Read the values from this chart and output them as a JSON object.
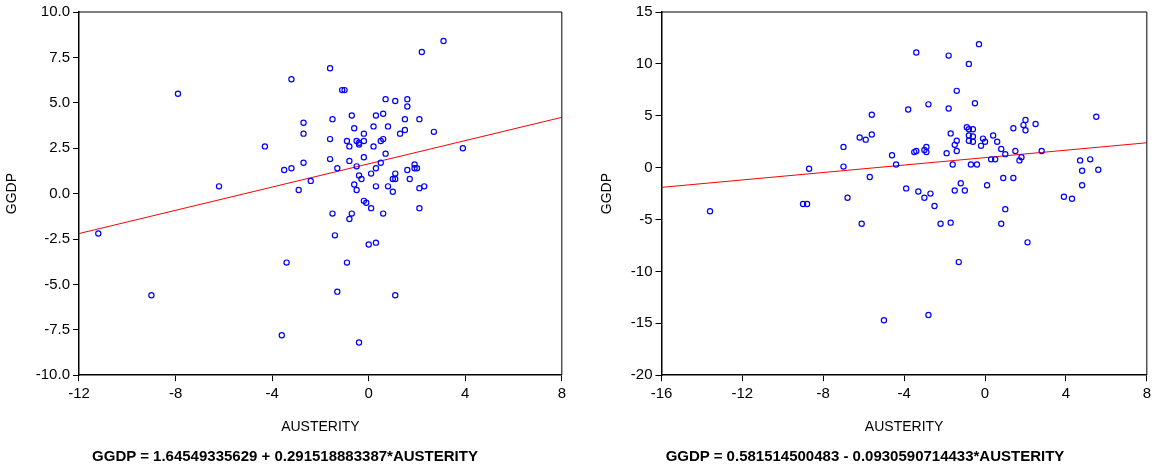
{
  "chart_data": [
    {
      "type": "scatter",
      "xlabel": "AUSTERITY",
      "ylabel": "GGDP",
      "xlim": [
        -12,
        8
      ],
      "xticks": [
        -12,
        -8,
        -4,
        0,
        4,
        8
      ],
      "ylim": [
        -10,
        10
      ],
      "yticks": [
        {
          "value": -10,
          "label": "-10.0"
        },
        {
          "value": -7.5,
          "label": "-7.5"
        },
        {
          "value": -5,
          "label": "-5.0"
        },
        {
          "value": -2.5,
          "label": "-2.5"
        },
        {
          "value": 0,
          "label": "0.0"
        },
        {
          "value": 2.5,
          "label": "2.5"
        },
        {
          "value": 5,
          "label": "5.0"
        },
        {
          "value": 7.5,
          "label": "7.5"
        },
        {
          "value": 10,
          "label": "10.0"
        }
      ],
      "grid": false,
      "legend": false,
      "marker": "circle",
      "annotations": [
        "GGDP = 1.64549335629 + 0.291518883387*AUSTERITY"
      ],
      "series": [
        {
          "color": "#0000ff",
          "x": [
            3.1,
            2.2,
            -1.6,
            -3.2,
            -7.9,
            -1.1,
            -1.0,
            0.7,
            1.1,
            1.6,
            1.6,
            -2.7,
            -1.5,
            -0.7,
            0.3,
            0.6,
            1.5,
            2.1,
            -2.7,
            -0.6,
            -0.2,
            0.2,
            0.8,
            1.5,
            1.3,
            2.7,
            -4.3,
            -1.6,
            -0.9,
            -0.5,
            -0.4,
            -0.2,
            -0.4,
            -0.8,
            0.2,
            0.5,
            0.6,
            3.9,
            0.7,
            -1.6,
            -0.8,
            -0.2,
            -2.7,
            -1.3,
            -0.5,
            0.5,
            0.3,
            1.9,
            2.0,
            1.9,
            1.6,
            -3.5,
            -3.2,
            0.1,
            -0.4,
            1.1,
            -0.3,
            1.0,
            1.1,
            1.7,
            -2.4,
            -0.6,
            -6.2,
            0.8,
            0.3,
            2.1,
            2.3,
            -2.9,
            -0.5,
            1.0,
            -0.2,
            -0.1,
            -1.5,
            -0.7,
            -0.8,
            0.1,
            0.6,
            2.1,
            -11.2,
            -1.4,
            0.0,
            0.3,
            -3.4,
            -0.9,
            -9.0,
            -1.3,
            1.1,
            -3.6,
            -0.4
          ],
          "values": [
            8.4,
            7.8,
            6.9,
            6.3,
            5.5,
            5.7,
            5.7,
            5.2,
            5.1,
            5.2,
            4.8,
            3.9,
            4.1,
            4.3,
            4.3,
            4.4,
            4.1,
            4.1,
            3.3,
            3.6,
            3.3,
            3.7,
            3.7,
            3.5,
            3.3,
            3.4,
            2.6,
            3.0,
            2.9,
            2.9,
            2.8,
            2.9,
            2.7,
            2.6,
            2.6,
            2.9,
            3.0,
            2.5,
            2.2,
            1.9,
            1.8,
            2.0,
            1.7,
            1.4,
            1.5,
            1.7,
            1.4,
            1.6,
            1.4,
            1.4,
            1.3,
            1.3,
            1.4,
            1.1,
            1.0,
            1.1,
            0.8,
            0.8,
            0.8,
            0.8,
            0.7,
            0.5,
            0.4,
            0.4,
            0.4,
            0.3,
            0.4,
            0.2,
            0.2,
            0.1,
            -0.4,
            -0.5,
            -1.1,
            -1.1,
            -1.4,
            -0.8,
            -1.1,
            -0.8,
            -2.2,
            -2.3,
            -2.8,
            -2.7,
            -3.8,
            -3.8,
            -5.6,
            -5.4,
            -5.6,
            -7.8,
            -8.2
          ]
        },
        {
          "type": "line",
          "marker": "none",
          "color": "#ff0000",
          "x": [
            -12,
            8
          ],
          "values": [
            -2.2,
            4.2
          ]
        }
      ]
    },
    {
      "type": "scatter",
      "xlabel": "AUSTERITY",
      "ylabel": "GGDP",
      "xlim": [
        -16,
        8
      ],
      "xticks": [
        -16,
        -12,
        -8,
        -4,
        0,
        4,
        8
      ],
      "ylim": [
        -20,
        15
      ],
      "yticks": [
        -20,
        -15,
        -10,
        -5,
        0,
        5,
        10,
        15
      ],
      "grid": false,
      "legend": false,
      "marker": "circle",
      "annotations": [
        "GGDP = 0.581514500483 - 0.0930590714433*AUSTERITY"
      ],
      "series": [
        {
          "color": "#0000ff",
          "x": [
            -0.3,
            -3.4,
            -1.8,
            -0.8,
            -1.4,
            -2.8,
            -0.5,
            -3.8,
            -1.8,
            -5.6,
            5.5,
            2.0,
            2.5,
            1.9,
            2.0,
            1.4,
            -0.9,
            -0.8,
            -0.6,
            -0.8,
            -0.6,
            -1.7,
            0.4,
            -0.1,
            -0.8,
            -0.6,
            -1.4,
            0.0,
            0.6,
            -0.2,
            -1.5,
            -6.2,
            -5.9,
            -5.6,
            -7.0,
            -2.9,
            -3.4,
            -3.0,
            -3.5,
            -2.9,
            -1.9,
            -1.4,
            0.8,
            1.5,
            2.8,
            1.0,
            -4.6,
            -4.4,
            0.3,
            0.5,
            1.8,
            1.7,
            4.7,
            5.2,
            -1.6,
            -0.7,
            -0.4,
            -8.7,
            -7.0,
            4.8,
            5.6,
            -5.7,
            0.9,
            1.4,
            -1.2,
            0.1,
            4.8,
            -3.9,
            -3.3,
            -1.5,
            -1.0,
            -2.7,
            -3.0,
            -6.8,
            3.9,
            4.3,
            -9.0,
            -8.8,
            -2.5,
            1.0,
            -13.6,
            -6.1,
            -2.2,
            -1.7,
            0.8,
            2.1,
            -1.3,
            -5.0,
            -2.8
          ],
          "values": [
            11.9,
            11.1,
            10.8,
            10.0,
            7.4,
            6.1,
            6.2,
            5.6,
            5.7,
            5.1,
            4.9,
            4.6,
            4.2,
            4.1,
            3.6,
            3.8,
            3.9,
            3.7,
            3.7,
            3.1,
            3.0,
            3.3,
            3.1,
            2.8,
            2.6,
            2.5,
            2.6,
            2.5,
            2.5,
            2.1,
            2.2,
            2.9,
            2.7,
            3.2,
            2.0,
            2.0,
            1.6,
            1.7,
            1.5,
            1.5,
            1.4,
            1.6,
            1.8,
            1.6,
            1.6,
            1.3,
            1.2,
            0.3,
            0.8,
            0.8,
            1.0,
            0.7,
            0.7,
            0.8,
            0.3,
            0.3,
            0.3,
            -0.1,
            0.1,
            -0.3,
            -0.2,
            -0.9,
            -1.0,
            -1.0,
            -1.5,
            -1.7,
            -1.7,
            -2.0,
            -2.3,
            -2.2,
            -2.2,
            -2.5,
            -2.9,
            -2.9,
            -2.8,
            -3.0,
            -3.5,
            -3.5,
            -3.7,
            -4.0,
            -4.2,
            -5.4,
            -5.4,
            -5.3,
            -5.4,
            -7.2,
            -9.1,
            -14.7,
            -14.2
          ]
        },
        {
          "type": "line",
          "marker": "none",
          "color": "#ff0000",
          "x": [
            -16,
            8
          ],
          "values": [
            -1.9,
            2.4
          ]
        }
      ]
    }
  ]
}
